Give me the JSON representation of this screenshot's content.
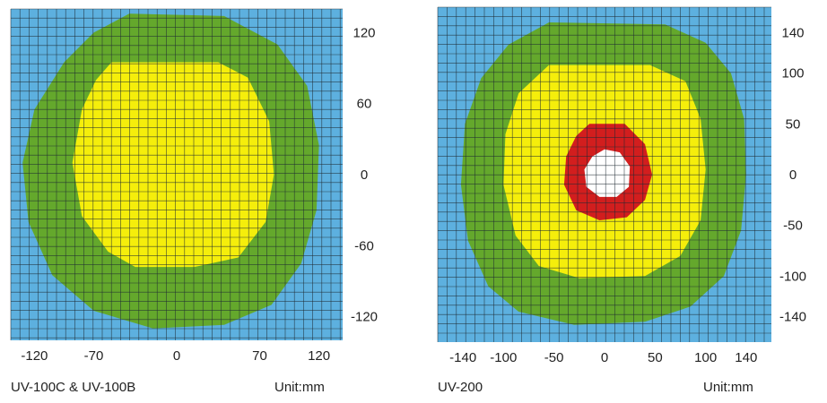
{
  "colors": {
    "background_zone": "#5db0df",
    "zone_outer": "#64a82c",
    "zone_middle": "#f5ee0b",
    "zone_inner": "#d21e1e",
    "zone_center": "#ffffff",
    "grid_line": "#1f2a33"
  },
  "chart_data": [
    {
      "type": "heatmap",
      "title": "",
      "caption": "UV-100C & UV-100B",
      "unit_label": "Unit:mm",
      "x_ticks": [
        "-120",
        "-70",
        "0",
        "70",
        "120"
      ],
      "y_ticks": [
        "120",
        "60",
        "0",
        "-60",
        "-120"
      ],
      "xlim": [
        -140,
        140
      ],
      "ylim": [
        -140,
        140
      ],
      "grid": true,
      "zones": [
        {
          "level": "outer",
          "color": "#64a82c",
          "polygon": [
            [
              -40,
              136
            ],
            [
              40,
              134
            ],
            [
              85,
              110
            ],
            [
              110,
              75
            ],
            [
              120,
              25
            ],
            [
              118,
              -30
            ],
            [
              105,
              -75
            ],
            [
              80,
              -110
            ],
            [
              40,
              -127
            ],
            [
              -20,
              -130
            ],
            [
              -70,
              -115
            ],
            [
              -105,
              -85
            ],
            [
              -125,
              -40
            ],
            [
              -130,
              10
            ],
            [
              -120,
              55
            ],
            [
              -95,
              95
            ],
            [
              -70,
              120
            ]
          ]
        },
        {
          "level": "middle",
          "color": "#f5ee0b",
          "polygon": [
            [
              -55,
              95
            ],
            [
              35,
              95
            ],
            [
              60,
              82
            ],
            [
              78,
              45
            ],
            [
              82,
              0
            ],
            [
              75,
              -40
            ],
            [
              52,
              -70
            ],
            [
              15,
              -78
            ],
            [
              -35,
              -78
            ],
            [
              -58,
              -65
            ],
            [
              -80,
              -35
            ],
            [
              -88,
              10
            ],
            [
              -80,
              55
            ],
            [
              -68,
              80
            ]
          ]
        }
      ]
    },
    {
      "type": "heatmap",
      "title": "",
      "caption": "UV-200",
      "unit_label": "Unit:mm",
      "x_ticks": [
        "-140",
        "-100",
        "-50",
        "0",
        "50",
        "100",
        "140"
      ],
      "y_ticks": [
        "140",
        "100",
        "50",
        "0",
        "-50",
        "-100",
        "-140"
      ],
      "xlim": [
        -165,
        165
      ],
      "ylim": [
        -165,
        165
      ],
      "grid": true,
      "zones": [
        {
          "level": "outer",
          "color": "#64a82c",
          "polygon": [
            [
              -55,
              150
            ],
            [
              60,
              148
            ],
            [
              100,
              130
            ],
            [
              125,
              100
            ],
            [
              138,
              55
            ],
            [
              140,
              0
            ],
            [
              135,
              -55
            ],
            [
              118,
              -100
            ],
            [
              85,
              -130
            ],
            [
              40,
              -145
            ],
            [
              -30,
              -148
            ],
            [
              -85,
              -135
            ],
            [
              -115,
              -110
            ],
            [
              -135,
              -65
            ],
            [
              -142,
              -10
            ],
            [
              -138,
              50
            ],
            [
              -122,
              95
            ],
            [
              -95,
              128
            ]
          ]
        },
        {
          "level": "middle",
          "color": "#f5ee0b",
          "polygon": [
            [
              -55,
              108
            ],
            [
              45,
              108
            ],
            [
              80,
              92
            ],
            [
              95,
              55
            ],
            [
              100,
              5
            ],
            [
              95,
              -45
            ],
            [
              75,
              -80
            ],
            [
              40,
              -100
            ],
            [
              -25,
              -102
            ],
            [
              -65,
              -90
            ],
            [
              -88,
              -60
            ],
            [
              -100,
              -10
            ],
            [
              -98,
              40
            ],
            [
              -85,
              80
            ]
          ]
        },
        {
          "level": "inner",
          "color": "#d21e1e",
          "polygon": [
            [
              -15,
              50
            ],
            [
              20,
              50
            ],
            [
              40,
              30
            ],
            [
              47,
              0
            ],
            [
              40,
              -25
            ],
            [
              22,
              -42
            ],
            [
              -5,
              -45
            ],
            [
              -28,
              -35
            ],
            [
              -40,
              -10
            ],
            [
              -38,
              18
            ],
            [
              -28,
              38
            ]
          ]
        },
        {
          "level": "center",
          "color": "#ffffff",
          "polygon": [
            [
              0,
              25
            ],
            [
              15,
              22
            ],
            [
              25,
              8
            ],
            [
              24,
              -12
            ],
            [
              12,
              -22
            ],
            [
              -5,
              -22
            ],
            [
              -18,
              -12
            ],
            [
              -20,
              5
            ],
            [
              -12,
              18
            ]
          ]
        }
      ]
    }
  ]
}
